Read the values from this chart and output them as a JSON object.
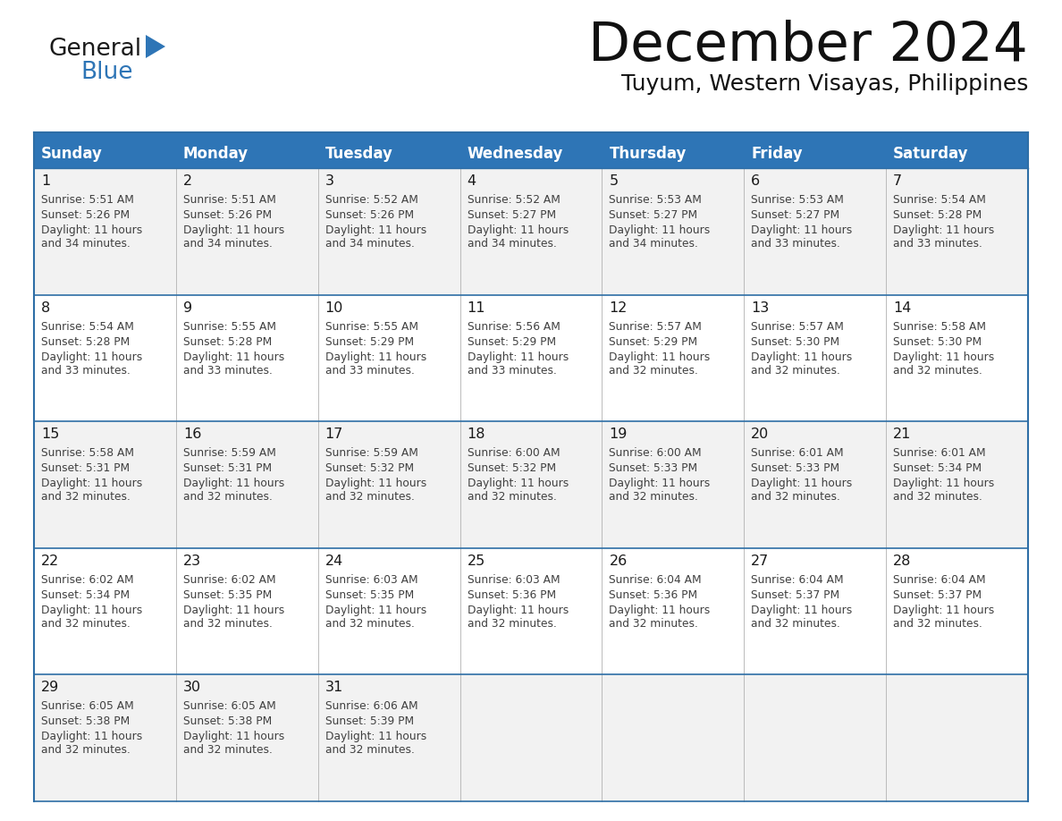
{
  "title": "December 2024",
  "subtitle": "Tuyum, Western Visayas, Philippines",
  "days_of_week": [
    "Sunday",
    "Monday",
    "Tuesday",
    "Wednesday",
    "Thursday",
    "Friday",
    "Saturday"
  ],
  "header_bg": "#2E75B6",
  "header_text": "#FFFFFF",
  "row_bg_odd": "#F2F2F2",
  "row_bg_even": "#FFFFFF",
  "cell_text_color": "#404040",
  "day_num_color": "#1a1a1a",
  "border_color": "#2E6EA6",
  "row_border_color": "#2E6EA6",
  "col_border_color": "#BBBBBB",
  "calendar_data": [
    [
      {
        "day": 1,
        "sunrise": "5:51 AM",
        "sunset": "5:26 PM",
        "daylight": "11 hours and 34 minutes."
      },
      {
        "day": 2,
        "sunrise": "5:51 AM",
        "sunset": "5:26 PM",
        "daylight": "11 hours and 34 minutes."
      },
      {
        "day": 3,
        "sunrise": "5:52 AM",
        "sunset": "5:26 PM",
        "daylight": "11 hours and 34 minutes."
      },
      {
        "day": 4,
        "sunrise": "5:52 AM",
        "sunset": "5:27 PM",
        "daylight": "11 hours and 34 minutes."
      },
      {
        "day": 5,
        "sunrise": "5:53 AM",
        "sunset": "5:27 PM",
        "daylight": "11 hours and 34 minutes."
      },
      {
        "day": 6,
        "sunrise": "5:53 AM",
        "sunset": "5:27 PM",
        "daylight": "11 hours and 33 minutes."
      },
      {
        "day": 7,
        "sunrise": "5:54 AM",
        "sunset": "5:28 PM",
        "daylight": "11 hours and 33 minutes."
      }
    ],
    [
      {
        "day": 8,
        "sunrise": "5:54 AM",
        "sunset": "5:28 PM",
        "daylight": "11 hours and 33 minutes."
      },
      {
        "day": 9,
        "sunrise": "5:55 AM",
        "sunset": "5:28 PM",
        "daylight": "11 hours and 33 minutes."
      },
      {
        "day": 10,
        "sunrise": "5:55 AM",
        "sunset": "5:29 PM",
        "daylight": "11 hours and 33 minutes."
      },
      {
        "day": 11,
        "sunrise": "5:56 AM",
        "sunset": "5:29 PM",
        "daylight": "11 hours and 33 minutes."
      },
      {
        "day": 12,
        "sunrise": "5:57 AM",
        "sunset": "5:29 PM",
        "daylight": "11 hours and 32 minutes."
      },
      {
        "day": 13,
        "sunrise": "5:57 AM",
        "sunset": "5:30 PM",
        "daylight": "11 hours and 32 minutes."
      },
      {
        "day": 14,
        "sunrise": "5:58 AM",
        "sunset": "5:30 PM",
        "daylight": "11 hours and 32 minutes."
      }
    ],
    [
      {
        "day": 15,
        "sunrise": "5:58 AM",
        "sunset": "5:31 PM",
        "daylight": "11 hours and 32 minutes."
      },
      {
        "day": 16,
        "sunrise": "5:59 AM",
        "sunset": "5:31 PM",
        "daylight": "11 hours and 32 minutes."
      },
      {
        "day": 17,
        "sunrise": "5:59 AM",
        "sunset": "5:32 PM",
        "daylight": "11 hours and 32 minutes."
      },
      {
        "day": 18,
        "sunrise": "6:00 AM",
        "sunset": "5:32 PM",
        "daylight": "11 hours and 32 minutes."
      },
      {
        "day": 19,
        "sunrise": "6:00 AM",
        "sunset": "5:33 PM",
        "daylight": "11 hours and 32 minutes."
      },
      {
        "day": 20,
        "sunrise": "6:01 AM",
        "sunset": "5:33 PM",
        "daylight": "11 hours and 32 minutes."
      },
      {
        "day": 21,
        "sunrise": "6:01 AM",
        "sunset": "5:34 PM",
        "daylight": "11 hours and 32 minutes."
      }
    ],
    [
      {
        "day": 22,
        "sunrise": "6:02 AM",
        "sunset": "5:34 PM",
        "daylight": "11 hours and 32 minutes."
      },
      {
        "day": 23,
        "sunrise": "6:02 AM",
        "sunset": "5:35 PM",
        "daylight": "11 hours and 32 minutes."
      },
      {
        "day": 24,
        "sunrise": "6:03 AM",
        "sunset": "5:35 PM",
        "daylight": "11 hours and 32 minutes."
      },
      {
        "day": 25,
        "sunrise": "6:03 AM",
        "sunset": "5:36 PM",
        "daylight": "11 hours and 32 minutes."
      },
      {
        "day": 26,
        "sunrise": "6:04 AM",
        "sunset": "5:36 PM",
        "daylight": "11 hours and 32 minutes."
      },
      {
        "day": 27,
        "sunrise": "6:04 AM",
        "sunset": "5:37 PM",
        "daylight": "11 hours and 32 minutes."
      },
      {
        "day": 28,
        "sunrise": "6:04 AM",
        "sunset": "5:37 PM",
        "daylight": "11 hours and 32 minutes."
      }
    ],
    [
      {
        "day": 29,
        "sunrise": "6:05 AM",
        "sunset": "5:38 PM",
        "daylight": "11 hours and 32 minutes."
      },
      {
        "day": 30,
        "sunrise": "6:05 AM",
        "sunset": "5:38 PM",
        "daylight": "11 hours and 32 minutes."
      },
      {
        "day": 31,
        "sunrise": "6:06 AM",
        "sunset": "5:39 PM",
        "daylight": "11 hours and 32 minutes."
      },
      null,
      null,
      null,
      null
    ]
  ],
  "logo_color_general": "#1a1a1a",
  "logo_color_blue": "#2E75B6",
  "logo_triangle_color": "#2E75B6"
}
